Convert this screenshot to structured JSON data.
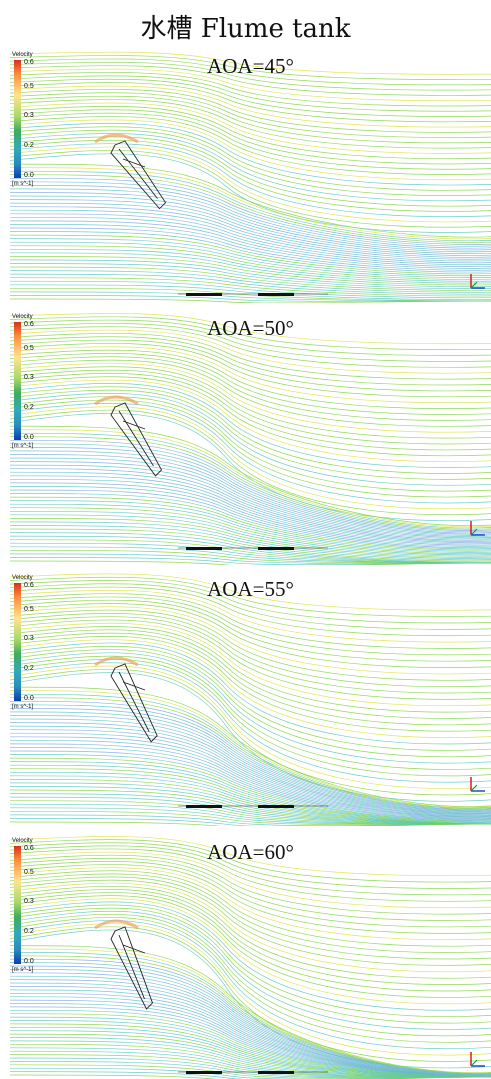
{
  "figure_title": "水槽 Flume tank",
  "colorbar": {
    "title": "Velocity",
    "ticks": [
      "0.6",
      "0.5",
      "0.3",
      "0.2",
      "0.0"
    ],
    "unit": "[m s^-1]"
  },
  "panels": [
    {
      "aoa_label": "AOA=45°",
      "aoa_deg": 45,
      "wake_strength": 0.55
    },
    {
      "aoa_label": "AOA=50°",
      "aoa_deg": 50,
      "wake_strength": 0.75
    },
    {
      "aoa_label": "AOA=55°",
      "aoa_deg": 55,
      "wake_strength": 0.9
    },
    {
      "aoa_label": "AOA=60°",
      "aoa_deg": 60,
      "wake_strength": 1.0
    }
  ],
  "colors": {
    "streamline_green": "#7fd23c",
    "streamline_yellow": "#d8e23a",
    "streamline_cyan": "#58c7c0",
    "streamline_orange": "#f0a060",
    "streamline_blue": "#7aa6e0",
    "blade_outline": "#222222"
  }
}
